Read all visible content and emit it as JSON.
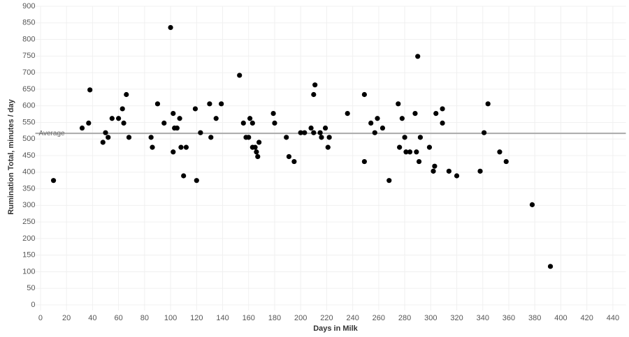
{
  "chart_data": {
    "type": "scatter",
    "x_label": "Days in Milk",
    "y_label": "Rumination Total, minutes / day",
    "reference_line": {
      "label": "Average",
      "value": 517
    },
    "color": "#000000",
    "grid": true,
    "xlim": [
      -4,
      450
    ],
    "xticks": [
      0,
      20,
      40,
      60,
      80,
      100,
      120,
      140,
      160,
      180,
      200,
      220,
      240,
      260,
      280,
      300,
      320,
      340,
      360,
      380,
      400,
      420,
      440
    ],
    "ylim": [
      0,
      900
    ],
    "yticks": [
      0,
      50,
      100,
      150,
      200,
      250,
      300,
      350,
      400,
      450,
      500,
      550,
      600,
      650,
      700,
      750,
      800,
      850,
      900
    ],
    "x": [
      10,
      32,
      37,
      38,
      48,
      50,
      52,
      55,
      60,
      63,
      64,
      66,
      68,
      85,
      86,
      90,
      95,
      100,
      102,
      102,
      103,
      105,
      107,
      108,
      110,
      112,
      119,
      120,
      123,
      130,
      131,
      135,
      139,
      153,
      156,
      158,
      160,
      161,
      163,
      163,
      165,
      166,
      167,
      168,
      179,
      180,
      189,
      191,
      195,
      200,
      203,
      208,
      210,
      210,
      211,
      215,
      216,
      219,
      221,
      222,
      236,
      249,
      249,
      254,
      257,
      259,
      263,
      268,
      275,
      276,
      278,
      280,
      281,
      284,
      288,
      289,
      290,
      291,
      292,
      299,
      302,
      303,
      304,
      309,
      309,
      314,
      320,
      338,
      341,
      344,
      353,
      358,
      378,
      392
    ],
    "values": [
      375,
      533,
      548,
      648,
      490,
      519,
      505,
      562,
      562,
      591,
      548,
      634,
      505,
      505,
      475,
      606,
      548,
      836,
      577,
      461,
      533,
      533,
      562,
      475,
      389,
      475,
      591,
      375,
      519,
      606,
      505,
      562,
      606,
      692,
      548,
      505,
      505,
      562,
      548,
      475,
      475,
      461,
      447,
      490,
      577,
      548,
      505,
      447,
      432,
      519,
      519,
      533,
      634,
      519,
      663,
      519,
      505,
      533,
      475,
      505,
      577,
      634,
      432,
      548,
      519,
      562,
      533,
      375,
      606,
      475,
      562,
      505,
      461,
      461,
      577,
      461,
      749,
      432,
      505,
      475,
      403,
      418,
      577,
      591,
      548,
      403,
      389,
      403,
      519,
      606,
      461,
      432,
      302,
      116
    ]
  }
}
